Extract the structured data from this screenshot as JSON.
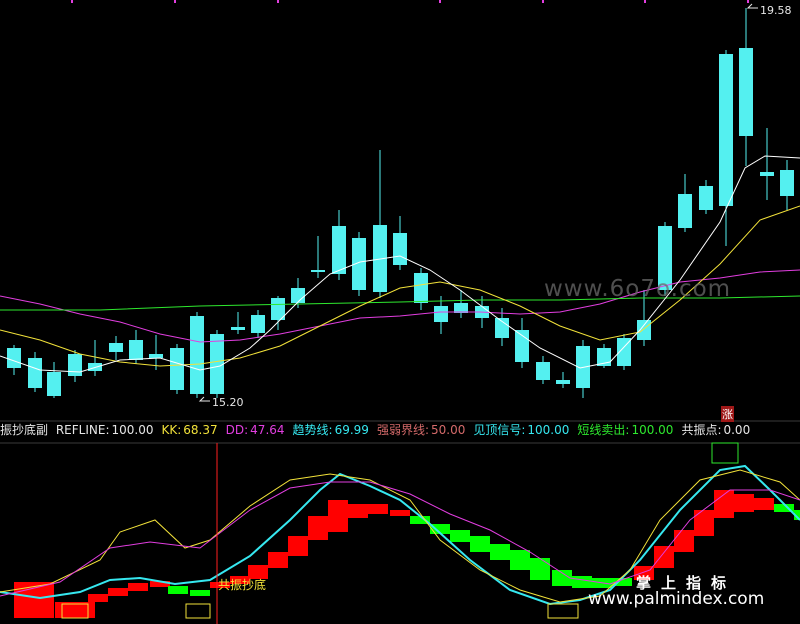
{
  "indicator": {
    "name": "振抄底副",
    "items": [
      {
        "label": "REFLINE:",
        "value": "100.00",
        "color": "#e6e6e6"
      },
      {
        "label": "KK:",
        "value": "68.37",
        "color": "#f2e23a"
      },
      {
        "label": "DD:",
        "value": "47.64",
        "color": "#e23ee0"
      },
      {
        "label": "趋势线:",
        "value": "69.99",
        "color": "#36e8f0"
      },
      {
        "label": "强弱界线:",
        "value": "50.00",
        "color": "#d46a6a"
      },
      {
        "label": "见顶信号:",
        "value": "100.00",
        "color": "#36e8f0"
      },
      {
        "label": "短线卖出:",
        "value": "100.00",
        "color": "#2ee82e"
      },
      {
        "label": "共振点:",
        "value": "0.00",
        "color": "#e6e6e6"
      }
    ]
  },
  "price": {
    "high_label": "19.58",
    "low_label": "15.20",
    "rise_badge": "涨",
    "signal_label": "共振抄底"
  },
  "watermark": {
    "site": "www.6o7o.com",
    "brand": "掌上指标",
    "url": "www.palmindex.com"
  },
  "colors": {
    "up": "#ff3b3b",
    "down": "#54f0f0",
    "ma5": "#ffffff",
    "ma10": "#f2e23a",
    "ma20": "#e23ee0",
    "ma60": "#2ee82e",
    "red_block": "#ff0000",
    "green_block": "#00ff00"
  }
}
